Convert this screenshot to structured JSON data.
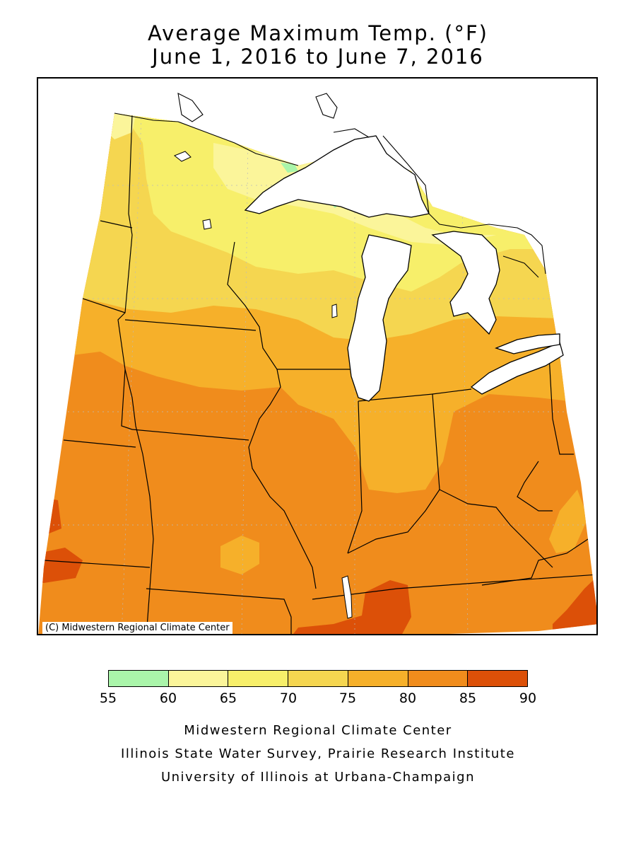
{
  "title_line1": "Average Maximum Temp. (°F)",
  "title_line2": "June 1, 2016 to June 7, 2016",
  "copyright": "(C) Midwestern Regional Climate Center",
  "legend": {
    "colors": [
      "#aaf5aa",
      "#fbf59a",
      "#f7ef6a",
      "#f5d650",
      "#f6b02a",
      "#f08c1c",
      "#dc5008"
    ],
    "ticks": [
      "55",
      "60",
      "65",
      "70",
      "75",
      "80",
      "85",
      "90"
    ]
  },
  "credits": [
    "Midwestern Regional Climate Center",
    "Illinois State Water Survey, Prairie Research Institute",
    "University of Illinois at Urbana-Champaign"
  ]
}
